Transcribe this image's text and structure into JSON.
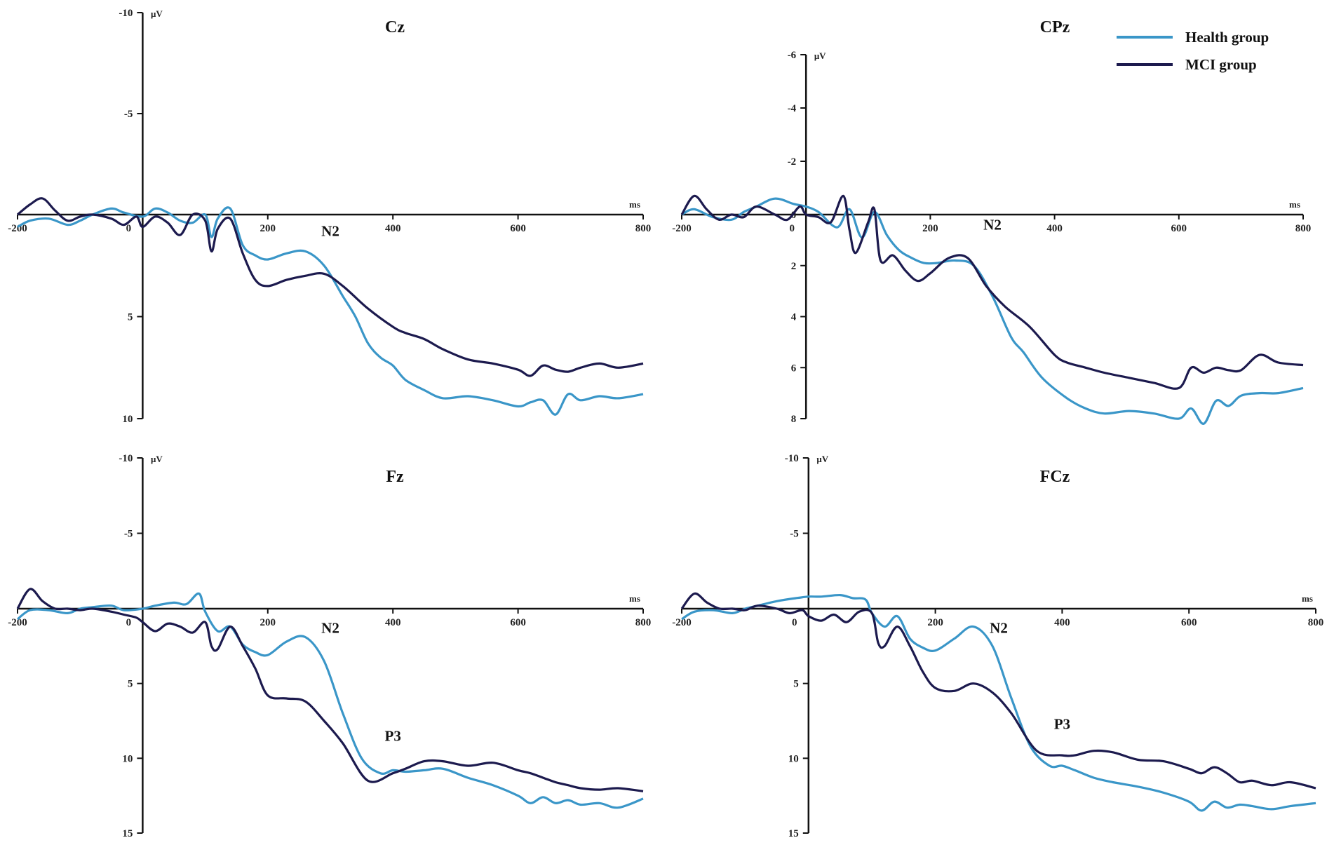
{
  "legend": [
    {
      "name": "Health group",
      "color": "#3a96c8"
    },
    {
      "name": "MCI group",
      "color": "#1c1a4e"
    }
  ],
  "chart_data": [
    {
      "type": "line",
      "title": "Cz",
      "xlabel": "ms",
      "ylabel": "μV",
      "xlim": [
        -200,
        800
      ],
      "ylim": [
        -10,
        10
      ],
      "y_inverted": true,
      "x_ticks": [
        -200,
        0,
        200,
        400,
        600,
        800
      ],
      "y_ticks": [
        -10,
        -5,
        5,
        10
      ],
      "annotations": [
        {
          "text": "N2",
          "x": 300,
          "y": 0.8
        }
      ],
      "series": [
        {
          "name": "Health group",
          "x": [
            -200,
            -180,
            -150,
            -120,
            -100,
            -80,
            -50,
            -30,
            0,
            20,
            40,
            60,
            80,
            100,
            110,
            120,
            140,
            160,
            180,
            200,
            230,
            260,
            290,
            320,
            340,
            360,
            380,
            400,
            420,
            450,
            480,
            520,
            560,
            600,
            620,
            640,
            660,
            680,
            700,
            730,
            760,
            800
          ],
          "y": [
            0.6,
            0.3,
            0.2,
            0.5,
            0.3,
            0.0,
            -0.3,
            -0.1,
            0.1,
            -0.3,
            -0.1,
            0.3,
            0.4,
            0.0,
            1.1,
            0.2,
            -0.3,
            1.5,
            2.0,
            2.2,
            1.9,
            1.8,
            2.5,
            4.0,
            5.0,
            6.3,
            7.0,
            7.4,
            8.1,
            8.6,
            9.0,
            8.9,
            9.1,
            9.4,
            9.2,
            9.1,
            9.8,
            8.8,
            9.1,
            8.9,
            9.0,
            8.8
          ]
        },
        {
          "name": "MCI group",
          "x": [
            -200,
            -180,
            -160,
            -140,
            -120,
            -100,
            -80,
            -50,
            -30,
            -10,
            0,
            20,
            40,
            60,
            80,
            100,
            110,
            120,
            140,
            160,
            180,
            200,
            230,
            260,
            290,
            320,
            360,
            400,
            420,
            450,
            480,
            520,
            560,
            600,
            620,
            640,
            660,
            680,
            700,
            730,
            760,
            800
          ],
          "y": [
            0.0,
            -0.5,
            -0.8,
            -0.2,
            0.3,
            0.1,
            0.0,
            0.2,
            0.5,
            0.1,
            0.6,
            0.1,
            0.4,
            1.0,
            0.0,
            0.3,
            1.8,
            0.7,
            0.2,
            1.9,
            3.2,
            3.5,
            3.2,
            3.0,
            2.9,
            3.5,
            4.6,
            5.5,
            5.8,
            6.1,
            6.6,
            7.1,
            7.3,
            7.6,
            7.9,
            7.4,
            7.6,
            7.7,
            7.5,
            7.3,
            7.5,
            7.3
          ]
        }
      ]
    },
    {
      "type": "line",
      "title": "CPz",
      "xlabel": "ms",
      "ylabel": "μV",
      "xlim": [
        -200,
        800
      ],
      "ylim": [
        -6,
        8
      ],
      "y_inverted": true,
      "x_ticks": [
        -200,
        0,
        200,
        400,
        600,
        800
      ],
      "y_ticks": [
        -6,
        -4,
        -2,
        0,
        2,
        4,
        6,
        8
      ],
      "annotations": [
        {
          "text": "N2",
          "x": 300,
          "y": 0.4
        }
      ],
      "series": [
        {
          "name": "Health group",
          "x": [
            -200,
            -180,
            -150,
            -120,
            -100,
            -80,
            -50,
            -20,
            0,
            20,
            50,
            70,
            90,
            110,
            130,
            150,
            170,
            190,
            210,
            240,
            270,
            300,
            330,
            350,
            380,
            420,
            450,
            480,
            520,
            560,
            600,
            620,
            640,
            660,
            680,
            700,
            730,
            760,
            800
          ],
          "y": [
            0.0,
            -0.2,
            0.1,
            0.2,
            -0.1,
            -0.3,
            -0.6,
            -0.4,
            -0.3,
            -0.1,
            0.5,
            -0.2,
            0.9,
            -0.1,
            0.8,
            1.4,
            1.7,
            1.9,
            1.9,
            1.8,
            2.0,
            3.2,
            4.8,
            5.4,
            6.4,
            7.2,
            7.6,
            7.8,
            7.7,
            7.8,
            8.0,
            7.6,
            8.2,
            7.3,
            7.5,
            7.1,
            7.0,
            7.0,
            6.8
          ]
        },
        {
          "name": "MCI group",
          "x": [
            -200,
            -180,
            -160,
            -140,
            -120,
            -100,
            -80,
            -50,
            -30,
            -10,
            0,
            20,
            40,
            60,
            70,
            80,
            100,
            110,
            120,
            140,
            160,
            180,
            200,
            230,
            260,
            290,
            320,
            360,
            400,
            420,
            450,
            480,
            520,
            560,
            600,
            620,
            640,
            660,
            680,
            700,
            730,
            760,
            800
          ],
          "y": [
            0.0,
            -0.7,
            -0.2,
            0.2,
            0.0,
            0.1,
            -0.3,
            0.0,
            0.2,
            -0.3,
            0.0,
            0.1,
            0.3,
            -0.7,
            0.6,
            1.5,
            0.3,
            -0.2,
            1.8,
            1.6,
            2.2,
            2.6,
            2.3,
            1.7,
            1.7,
            2.8,
            3.6,
            4.4,
            5.5,
            5.8,
            6.0,
            6.2,
            6.4,
            6.6,
            6.8,
            6.0,
            6.2,
            6.0,
            6.1,
            6.1,
            5.5,
            5.8,
            5.9
          ]
        }
      ]
    },
    {
      "type": "line",
      "title": "Fz",
      "xlabel": "ms",
      "ylabel": "μV",
      "xlim": [
        -200,
        800
      ],
      "ylim": [
        -10,
        15
      ],
      "y_inverted": true,
      "x_ticks": [
        -200,
        0,
        200,
        400,
        600,
        800
      ],
      "y_ticks": [
        -10,
        -5,
        5,
        10,
        15
      ],
      "annotations": [
        {
          "text": "N2",
          "x": 300,
          "y": 1.3
        },
        {
          "text": "P3",
          "x": 400,
          "y": 8.5
        }
      ],
      "series": [
        {
          "name": "Health group",
          "x": [
            -200,
            -180,
            -150,
            -120,
            -100,
            -80,
            -50,
            -30,
            0,
            20,
            50,
            70,
            90,
            100,
            120,
            140,
            160,
            180,
            200,
            230,
            260,
            290,
            320,
            350,
            380,
            400,
            420,
            450,
            480,
            520,
            560,
            600,
            620,
            640,
            660,
            680,
            700,
            730,
            760,
            800
          ],
          "y": [
            0.7,
            0.1,
            0.1,
            0.3,
            0.0,
            -0.1,
            -0.2,
            0.1,
            0.0,
            -0.2,
            -0.4,
            -0.3,
            -1.0,
            0.2,
            1.5,
            1.2,
            2.4,
            2.9,
            3.1,
            2.2,
            1.9,
            3.5,
            7.0,
            10.0,
            11.0,
            10.8,
            10.9,
            10.8,
            10.7,
            11.3,
            11.8,
            12.5,
            13.0,
            12.6,
            13.0,
            12.8,
            13.1,
            13.0,
            13.3,
            12.7
          ]
        },
        {
          "name": "MCI group",
          "x": [
            -200,
            -180,
            -160,
            -140,
            -120,
            -100,
            -80,
            -50,
            -30,
            -10,
            0,
            20,
            40,
            60,
            80,
            100,
            110,
            120,
            140,
            160,
            180,
            200,
            230,
            260,
            290,
            320,
            360,
            400,
            420,
            450,
            480,
            520,
            560,
            600,
            620,
            640,
            660,
            680,
            700,
            730,
            760,
            800
          ],
          "y": [
            0.0,
            -1.3,
            -0.5,
            0.0,
            0.0,
            0.1,
            0.0,
            0.2,
            0.4,
            0.6,
            0.9,
            1.5,
            1.0,
            1.2,
            1.6,
            0.9,
            2.5,
            2.7,
            1.2,
            2.5,
            4.0,
            5.8,
            6.0,
            6.2,
            7.5,
            9.0,
            11.5,
            11.0,
            10.7,
            10.2,
            10.2,
            10.5,
            10.3,
            10.8,
            11.0,
            11.3,
            11.6,
            11.8,
            12.0,
            12.1,
            12.0,
            12.2
          ]
        }
      ]
    },
    {
      "type": "line",
      "title": "FCz",
      "xlabel": "ms",
      "ylabel": "μV",
      "xlim": [
        -200,
        800
      ],
      "ylim": [
        -10,
        15
      ],
      "y_inverted": true,
      "x_ticks": [
        -200,
        0,
        200,
        400,
        600,
        800
      ],
      "y_ticks": [
        -10,
        -5,
        5,
        10,
        15
      ],
      "annotations": [
        {
          "text": "N2",
          "x": 300,
          "y": 1.3
        },
        {
          "text": "P3",
          "x": 400,
          "y": 7.7
        }
      ],
      "series": [
        {
          "name": "Health group",
          "x": [
            -200,
            -180,
            -150,
            -120,
            -100,
            -80,
            -50,
            -20,
            0,
            20,
            50,
            70,
            90,
            100,
            120,
            140,
            160,
            180,
            200,
            230,
            260,
            290,
            320,
            350,
            380,
            400,
            420,
            450,
            480,
            520,
            560,
            600,
            620,
            640,
            660,
            680,
            700,
            730,
            760,
            800
          ],
          "y": [
            0.7,
            0.2,
            0.1,
            0.3,
            0.0,
            -0.2,
            -0.5,
            -0.7,
            -0.8,
            -0.8,
            -0.9,
            -0.7,
            -0.6,
            0.3,
            1.2,
            0.5,
            2.0,
            2.6,
            2.8,
            2.0,
            1.2,
            2.5,
            6.0,
            9.2,
            10.5,
            10.5,
            10.8,
            11.3,
            11.6,
            11.9,
            12.3,
            12.9,
            13.5,
            12.9,
            13.3,
            13.1,
            13.2,
            13.4,
            13.2,
            13.0
          ]
        },
        {
          "name": "MCI group",
          "x": [
            -200,
            -180,
            -160,
            -140,
            -120,
            -100,
            -80,
            -50,
            -30,
            -10,
            0,
            20,
            40,
            60,
            80,
            100,
            110,
            120,
            140,
            160,
            180,
            200,
            230,
            260,
            290,
            320,
            360,
            400,
            420,
            450,
            480,
            520,
            560,
            600,
            620,
            640,
            660,
            680,
            700,
            730,
            760,
            800
          ],
          "y": [
            0.0,
            -1.0,
            -0.4,
            0.0,
            0.0,
            0.1,
            -0.2,
            0.0,
            0.3,
            0.1,
            0.5,
            0.8,
            0.4,
            0.9,
            0.2,
            0.3,
            2.3,
            2.5,
            1.2,
            2.5,
            4.2,
            5.3,
            5.5,
            5.0,
            5.6,
            7.0,
            9.5,
            9.8,
            9.8,
            9.5,
            9.6,
            10.1,
            10.2,
            10.7,
            11.0,
            10.6,
            11.0,
            11.6,
            11.5,
            11.8,
            11.6,
            12.0
          ]
        }
      ]
    }
  ]
}
